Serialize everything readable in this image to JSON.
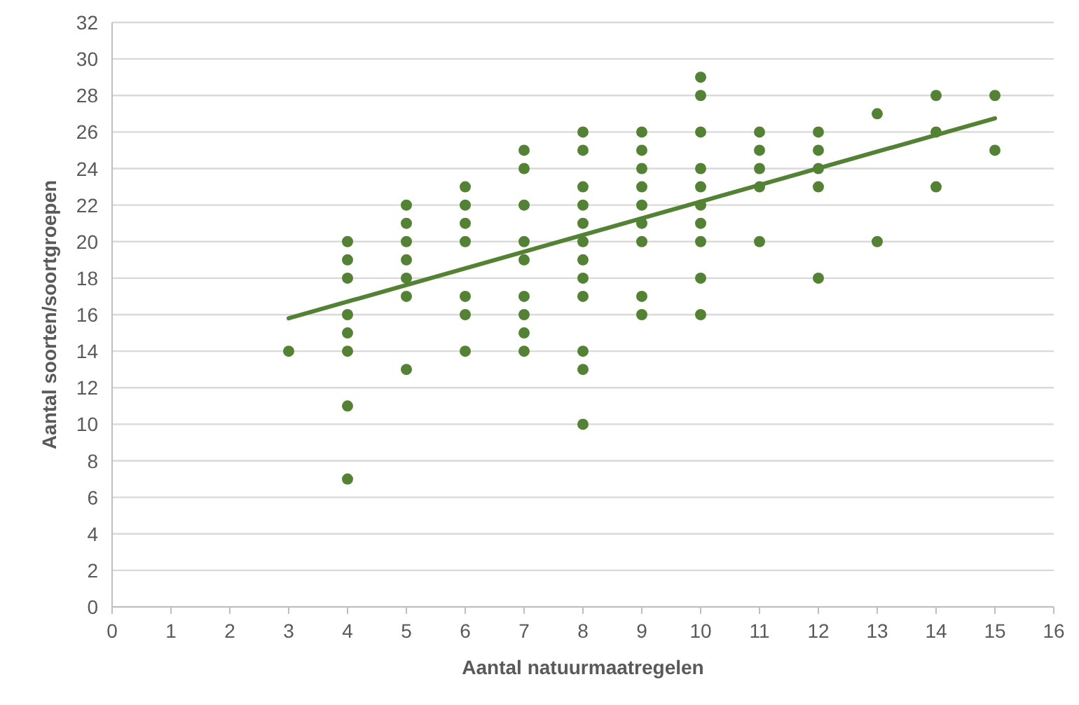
{
  "chart_data": {
    "type": "scatter",
    "xlabel": "Aantal natuurmaatregelen",
    "ylabel": "Aantal soorten/soortgroepen",
    "xlim": [
      0,
      16
    ],
    "xticks": [
      0,
      1,
      2,
      3,
      4,
      5,
      6,
      7,
      8,
      9,
      10,
      11,
      12,
      13,
      14,
      15,
      16
    ],
    "ylim": [
      0,
      32
    ],
    "yticks": [
      0,
      2,
      4,
      6,
      8,
      10,
      12,
      14,
      16,
      18,
      20,
      22,
      24,
      26,
      28,
      30,
      32
    ],
    "grid": "y",
    "marker": "circle",
    "series": [
      {
        "type": "scatter",
        "color": "#548235",
        "x": [
          3,
          4,
          4,
          4,
          4,
          4,
          4,
          4,
          4,
          5,
          5,
          5,
          5,
          5,
          5,
          5,
          6,
          6,
          6,
          6,
          6,
          6,
          6,
          7,
          7,
          7,
          7,
          7,
          7,
          7,
          7,
          7,
          8,
          8,
          8,
          8,
          8,
          8,
          8,
          8,
          8,
          8,
          8,
          8,
          9,
          9,
          9,
          9,
          9,
          9,
          9,
          9,
          9,
          10,
          10,
          10,
          10,
          10,
          10,
          10,
          10,
          10,
          10,
          11,
          11,
          11,
          11,
          11,
          12,
          12,
          12,
          12,
          12,
          13,
          13,
          14,
          14,
          14,
          15,
          15
        ],
        "values": [
          14,
          20,
          19,
          18,
          16,
          15,
          14,
          11,
          7,
          22,
          21,
          20,
          19,
          18,
          17,
          13,
          23,
          22,
          21,
          20,
          17,
          16,
          14,
          25,
          24,
          22,
          20,
          19,
          17,
          16,
          15,
          14,
          26,
          25,
          23,
          22,
          21,
          20,
          19,
          18,
          17,
          14,
          13,
          10,
          26,
          25,
          24,
          23,
          22,
          21,
          20,
          17,
          16,
          29,
          28,
          26,
          24,
          23,
          22,
          21,
          20,
          18,
          16,
          26,
          25,
          24,
          23,
          20,
          26,
          25,
          24,
          23,
          18,
          27,
          20,
          28,
          26,
          23,
          28,
          25
        ]
      },
      {
        "type": "line",
        "color": "#548235",
        "x": [
          3,
          15
        ],
        "values": [
          15.8,
          26.75
        ],
        "marker": "none",
        "line_style": "solid"
      }
    ]
  }
}
